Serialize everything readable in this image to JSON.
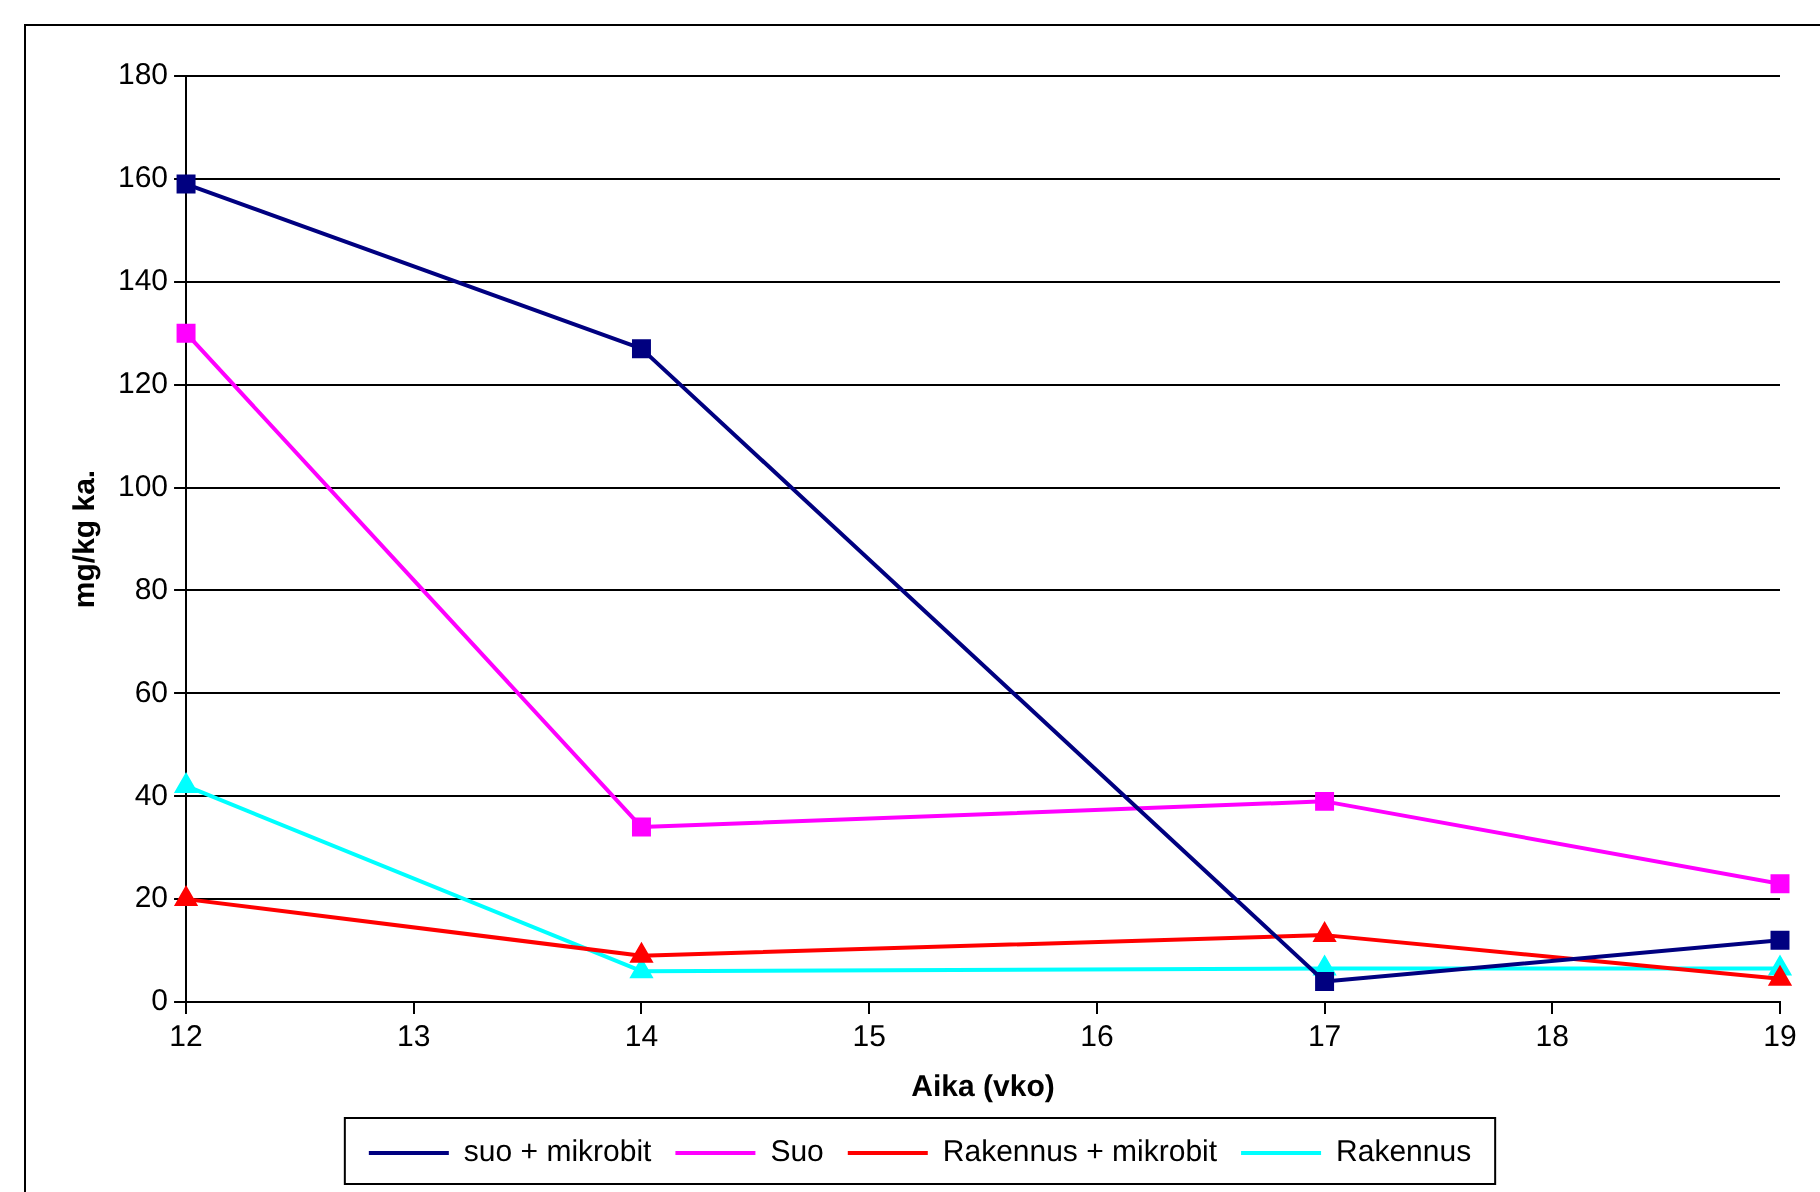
{
  "chart_data": {
    "type": "line",
    "xlabel": "Aika (vko)",
    "ylabel": "mg/kg ka.",
    "x": [
      12,
      14,
      17,
      19
    ],
    "xlim": [
      12,
      19
    ],
    "xticks": [
      12,
      13,
      14,
      15,
      16,
      17,
      18,
      19
    ],
    "ylim": [
      0,
      180
    ],
    "yticks": [
      0,
      20,
      40,
      60,
      80,
      100,
      120,
      140,
      160,
      180
    ],
    "grid": "y",
    "legend": "bottom",
    "series": [
      {
        "name": "suo + mikrobit",
        "color": "#000080",
        "marker": "square",
        "values": [
          159,
          127,
          4,
          12
        ]
      },
      {
        "name": "Suo",
        "color": "#ff00ff",
        "marker": "square",
        "values": [
          130,
          34,
          39,
          23
        ]
      },
      {
        "name": "Rakennus + mikrobit",
        "color": "#ff0000",
        "marker": "triangle",
        "values": [
          20,
          9,
          13,
          4.5
        ]
      },
      {
        "name": "Rakennus",
        "color": "#00ffff",
        "marker": "triangle",
        "values": [
          42,
          6,
          6.5,
          6.5
        ]
      }
    ]
  }
}
